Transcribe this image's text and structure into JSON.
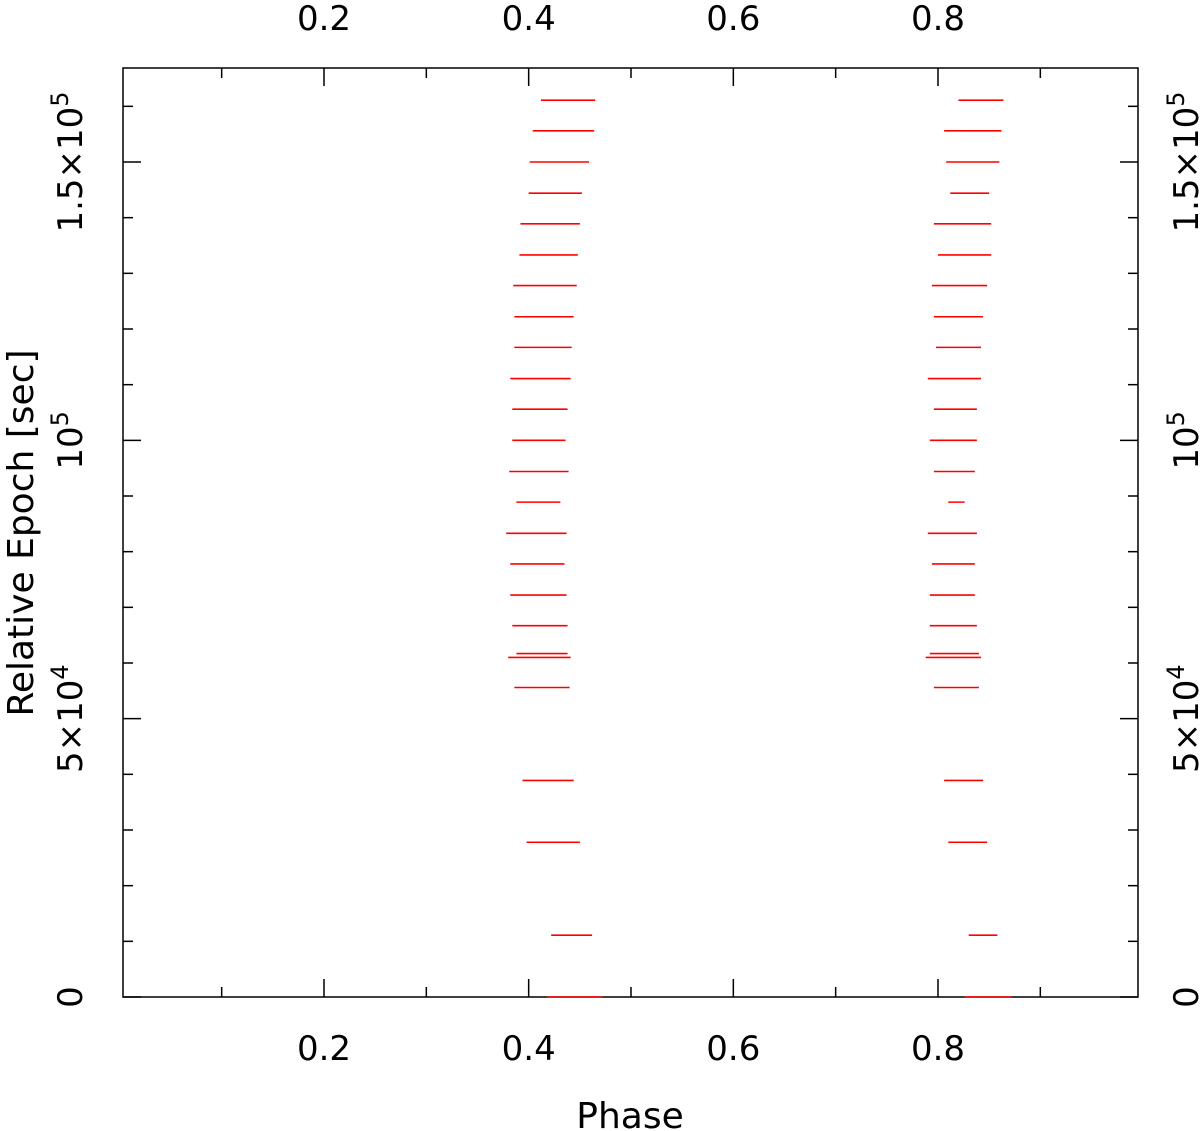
{
  "chart_data": {
    "type": "scatter",
    "title": "",
    "xlabel": "Phase",
    "ylabel": "Relative Epoch [sec]",
    "xlim": [
      0.0,
      0.98
    ],
    "ylim": [
      0,
      161000
    ],
    "grid": false,
    "x_ticks": [
      {
        "value": 0.2,
        "label": "0.2"
      },
      {
        "value": 0.4,
        "label": "0.4"
      },
      {
        "value": 0.6,
        "label": "0.6"
      },
      {
        "value": 0.8,
        "label": "0.8"
      }
    ],
    "x_minor_ticks": [
      0.1,
      0.3,
      0.5,
      0.7,
      0.9
    ],
    "y_ticks": [
      {
        "value": 0,
        "label_main": "0",
        "label_exp": ""
      },
      {
        "value": 50000,
        "label_main": "5×10",
        "label_exp": "4"
      },
      {
        "value": 100000,
        "label_main": "10",
        "label_exp": "5"
      },
      {
        "value": 150000,
        "label_main": "1.5×10",
        "label_exp": "5"
      }
    ],
    "y_minor_ticks": [
      10000,
      20000,
      30000,
      40000,
      60000,
      70000,
      80000,
      90000,
      110000,
      120000,
      130000,
      140000,
      160000
    ],
    "marker_style": "horizontal-bar",
    "color": "#ff0000",
    "series": [
      {
        "points": [
          {
            "y": 0,
            "x0": 0.418,
            "x1": 0.472
          },
          {
            "y": 11100,
            "x0": 0.422,
            "x1": 0.462
          },
          {
            "y": 27800,
            "x0": 0.398,
            "x1": 0.45
          },
          {
            "y": 38900,
            "x0": 0.394,
            "x1": 0.444
          },
          {
            "y": 55600,
            "x0": 0.386,
            "x1": 0.44
          },
          {
            "y": 61000,
            "x0": 0.38,
            "x1": 0.441
          },
          {
            "y": 61700,
            "x0": 0.388,
            "x1": 0.438
          },
          {
            "y": 66700,
            "x0": 0.384,
            "x1": 0.438
          },
          {
            "y": 72200,
            "x0": 0.382,
            "x1": 0.437
          },
          {
            "y": 77800,
            "x0": 0.382,
            "x1": 0.435
          },
          {
            "y": 83300,
            "x0": 0.378,
            "x1": 0.437
          },
          {
            "y": 88900,
            "x0": 0.388,
            "x1": 0.431
          },
          {
            "y": 94400,
            "x0": 0.381,
            "x1": 0.439
          },
          {
            "y": 100000,
            "x0": 0.384,
            "x1": 0.436
          },
          {
            "y": 105600,
            "x0": 0.384,
            "x1": 0.438
          },
          {
            "y": 111100,
            "x0": 0.382,
            "x1": 0.441
          },
          {
            "y": 116700,
            "x0": 0.386,
            "x1": 0.442
          },
          {
            "y": 122200,
            "x0": 0.386,
            "x1": 0.444
          },
          {
            "y": 127800,
            "x0": 0.385,
            "x1": 0.447
          },
          {
            "y": 133300,
            "x0": 0.391,
            "x1": 0.448
          },
          {
            "y": 138900,
            "x0": 0.392,
            "x1": 0.45
          },
          {
            "y": 144400,
            "x0": 0.4,
            "x1": 0.452
          },
          {
            "y": 150000,
            "x0": 0.401,
            "x1": 0.459
          },
          {
            "y": 155600,
            "x0": 0.404,
            "x1": 0.464
          },
          {
            "y": 161100,
            "x0": 0.412,
            "x1": 0.465
          }
        ]
      },
      {
        "points": [
          {
            "y": 0,
            "x0": 0.826,
            "x1": 0.872
          },
          {
            "y": 11100,
            "x0": 0.83,
            "x1": 0.858
          },
          {
            "y": 27800,
            "x0": 0.81,
            "x1": 0.848
          },
          {
            "y": 38900,
            "x0": 0.806,
            "x1": 0.844
          },
          {
            "y": 55600,
            "x0": 0.796,
            "x1": 0.84
          },
          {
            "y": 61000,
            "x0": 0.788,
            "x1": 0.842
          },
          {
            "y": 61700,
            "x0": 0.792,
            "x1": 0.84
          },
          {
            "y": 66700,
            "x0": 0.792,
            "x1": 0.838
          },
          {
            "y": 72200,
            "x0": 0.792,
            "x1": 0.836
          },
          {
            "y": 77800,
            "x0": 0.794,
            "x1": 0.836
          },
          {
            "y": 83300,
            "x0": 0.79,
            "x1": 0.838
          },
          {
            "y": 88900,
            "x0": 0.81,
            "x1": 0.826
          },
          {
            "y": 94400,
            "x0": 0.796,
            "x1": 0.836
          },
          {
            "y": 100000,
            "x0": 0.792,
            "x1": 0.838
          },
          {
            "y": 105600,
            "x0": 0.796,
            "x1": 0.838
          },
          {
            "y": 111100,
            "x0": 0.79,
            "x1": 0.842
          },
          {
            "y": 116700,
            "x0": 0.798,
            "x1": 0.842
          },
          {
            "y": 122200,
            "x0": 0.796,
            "x1": 0.844
          },
          {
            "y": 127800,
            "x0": 0.794,
            "x1": 0.848
          },
          {
            "y": 133300,
            "x0": 0.8,
            "x1": 0.852
          },
          {
            "y": 138900,
            "x0": 0.796,
            "x1": 0.852
          },
          {
            "y": 144400,
            "x0": 0.812,
            "x1": 0.85
          },
          {
            "y": 150000,
            "x0": 0.808,
            "x1": 0.86
          },
          {
            "y": 155600,
            "x0": 0.806,
            "x1": 0.862
          },
          {
            "y": 161100,
            "x0": 0.82,
            "x1": 0.864
          }
        ]
      }
    ]
  }
}
